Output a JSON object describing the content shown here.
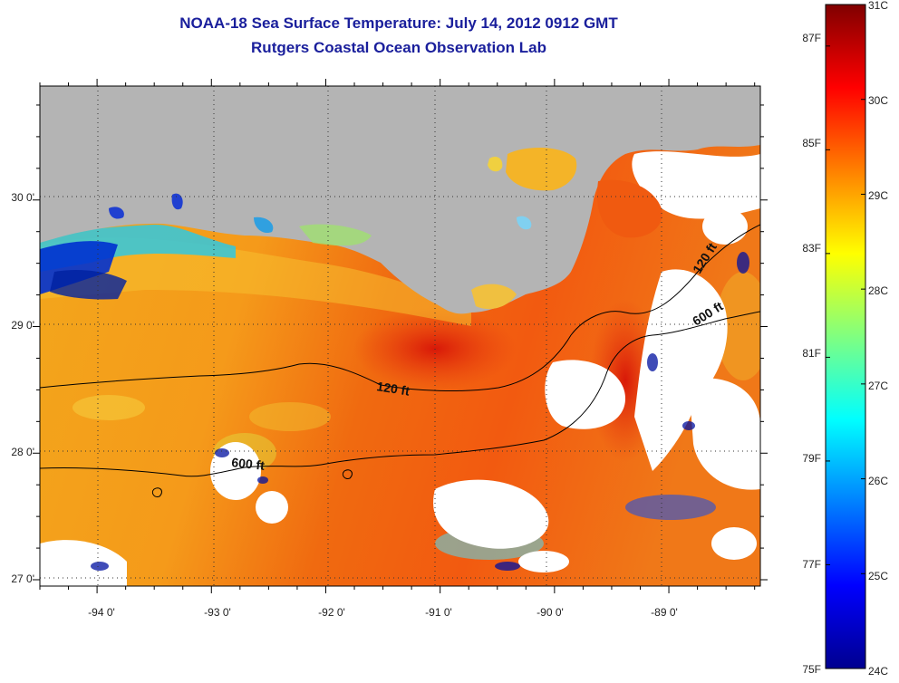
{
  "title": "NOAA-18 Sea Surface Temperature:  July 14, 2012 0912 GMT",
  "subtitle": "Rutgers Coastal Ocean Observation Lab",
  "map": {
    "lon_range": [
      -94.5,
      -88.2
    ],
    "lat_range": [
      26.95,
      30.9
    ],
    "lon_ticks": [
      {
        "value": -94,
        "label": "-94 0'"
      },
      {
        "value": -93,
        "label": "-93 0'"
      },
      {
        "value": -92,
        "label": "-92 0'"
      },
      {
        "value": -91,
        "label": "-91 0'"
      },
      {
        "value": -90,
        "label": "-90 0'"
      },
      {
        "value": -89,
        "label": "-89 0'"
      }
    ],
    "lat_ticks": [
      {
        "value": 27,
        "label": "27 0'"
      },
      {
        "value": 28,
        "label": "28 0'"
      },
      {
        "value": 29,
        "label": "29 0'"
      },
      {
        "value": 30,
        "label": "30 0'"
      }
    ],
    "contours": [
      {
        "name": "120 ft",
        "label": "120 ft"
      },
      {
        "name": "600 ft",
        "label": "600 ft"
      }
    ],
    "colors": {
      "land": "#b4b4b4",
      "cloud": "#ffffff",
      "contour": "#000000"
    }
  },
  "colorbar": {
    "celsius_range": [
      24,
      31
    ],
    "fahrenheit_range": [
      75,
      87.8
    ],
    "celsius_ticks": [
      {
        "value": 31,
        "label": "31C"
      },
      {
        "value": 30,
        "label": "30C"
      },
      {
        "value": 29,
        "label": "29C"
      },
      {
        "value": 28,
        "label": "28C"
      },
      {
        "value": 27,
        "label": "27C"
      },
      {
        "value": 26,
        "label": "26C"
      },
      {
        "value": 25,
        "label": "25C"
      },
      {
        "value": 24,
        "label": "24C"
      }
    ],
    "fahrenheit_ticks": [
      {
        "value": 87,
        "label": "87F"
      },
      {
        "value": 85,
        "label": "85F"
      },
      {
        "value": 83,
        "label": "83F"
      },
      {
        "value": 81,
        "label": "81F"
      },
      {
        "value": 79,
        "label": "79F"
      },
      {
        "value": 77,
        "label": "77F"
      },
      {
        "value": 75,
        "label": "75F"
      }
    ],
    "colormap": [
      "#00008f",
      "#0000ff",
      "#0080ff",
      "#00ffff",
      "#80ff80",
      "#ffff00",
      "#ff8000",
      "#ff0000",
      "#800000"
    ]
  }
}
